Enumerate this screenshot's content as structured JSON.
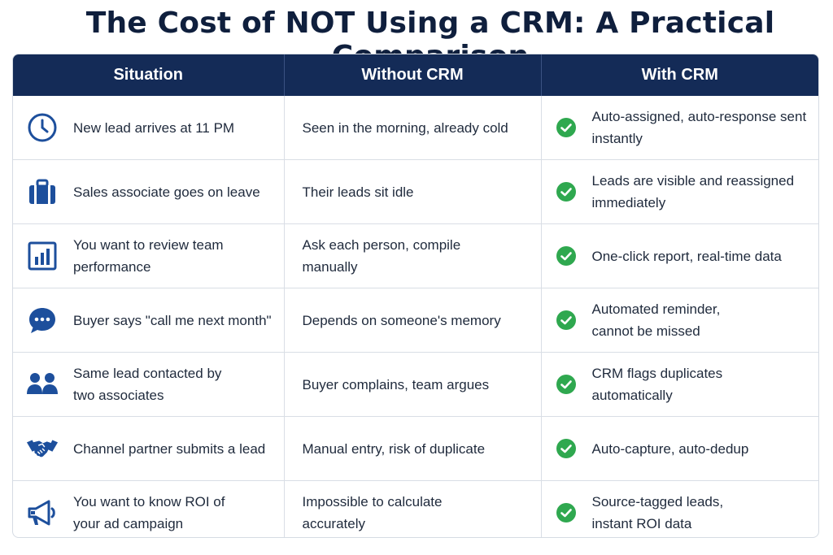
{
  "title": "The Cost of NOT Using a CRM: A Practical Comparison",
  "headers": {
    "situation": "Situation",
    "without": "Without CRM",
    "with": "With CRM"
  },
  "colors": {
    "header_bg": "#142b57",
    "icon": "#1d4f9c",
    "check": "#2fa84f"
  },
  "rows": [
    {
      "icon": "clock-icon",
      "situation": "New lead arrives at 11 PM",
      "without": "Seen in the morning, already cold",
      "with": "Auto-assigned, auto-response sent instantly"
    },
    {
      "icon": "briefcase-icon",
      "situation": "Sales associate goes on leave",
      "without": "Their leads sit idle",
      "with": "Leads are visible and reassigned immediately"
    },
    {
      "icon": "bar-chart-icon",
      "situation": "You want to review team performance",
      "without": "Ask each person, compile manually",
      "with": "One-click report, real-time data"
    },
    {
      "icon": "chat-bubble-icon",
      "situation": "Buyer says \"call me next month\"",
      "without": "Depends on someone's memory",
      "with": "Automated reminder, cannot be missed"
    },
    {
      "icon": "users-icon",
      "situation": "Same lead contacted by two associates",
      "without": "Buyer complains, team argues",
      "with": "CRM flags duplicates automatically"
    },
    {
      "icon": "handshake-icon",
      "situation": "Channel partner submits a lead",
      "without": "Manual entry, risk of duplicate",
      "with": "Auto-capture, auto-dedup"
    },
    {
      "icon": "megaphone-icon",
      "situation": "You want to know ROI of your ad campaign",
      "without": "Impossible to calculate accurately",
      "with": "Source-tagged leads, instant ROI data"
    }
  ]
}
